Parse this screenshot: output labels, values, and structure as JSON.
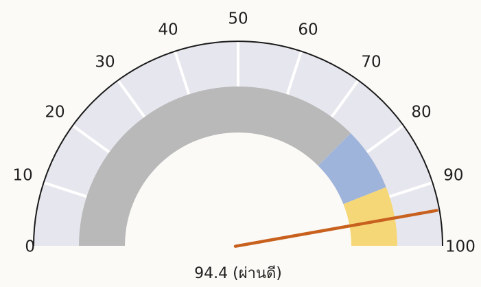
{
  "chart_data": {
    "type": "gauge",
    "min": 0,
    "max": 100,
    "value": 94.4,
    "value_label": "94.4 (ผ่านดี)",
    "tick_labels": [
      "0",
      "10",
      "20",
      "30",
      "40",
      "50",
      "60",
      "70",
      "80",
      "90",
      "100"
    ],
    "ranges": [
      {
        "from": 0,
        "to": 75,
        "color": "#b9b9b9"
      },
      {
        "from": 75,
        "to": 88,
        "color": "#9fb4da"
      },
      {
        "from": 88,
        "to": 100,
        "color": "#f6d777"
      }
    ],
    "outer_band_color": "#e6e6ee",
    "needle_color": "#c8601e"
  }
}
